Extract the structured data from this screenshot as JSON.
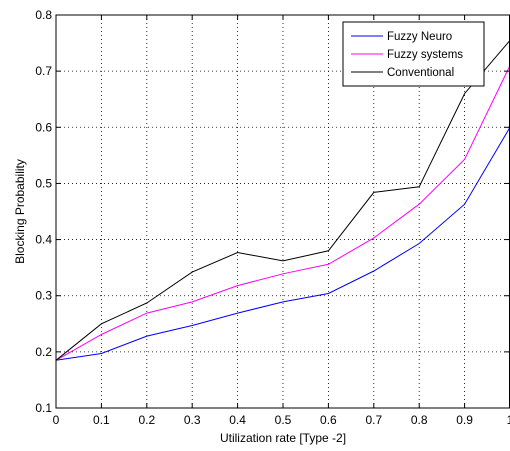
{
  "chart_data": {
    "type": "line",
    "xlabel": "Utilization rate [Type -2]",
    "ylabel": "Blocking Probability",
    "xlim": [
      0,
      1
    ],
    "ylim": [
      0.1,
      0.8
    ],
    "x_ticks": [
      "0",
      "0.1",
      "0.2",
      "0.3",
      "0.4",
      "0.5",
      "0.6",
      "0.7",
      "0.8",
      "0.9",
      "1"
    ],
    "y_ticks": [
      "0.1",
      "0.2",
      "0.3",
      "0.4",
      "0.5",
      "0.6",
      "0.7",
      "0.8"
    ],
    "grid": true,
    "legend_position": "top-right",
    "x": [
      0,
      0.1,
      0.2,
      0.3,
      0.4,
      0.5,
      0.6,
      0.7,
      0.8,
      0.9,
      1.0
    ],
    "series": [
      {
        "name": "Fuzzy Neuro",
        "color": "#0000ff",
        "values": [
          0.185,
          0.197,
          0.228,
          0.247,
          0.269,
          0.289,
          0.304,
          0.344,
          0.393,
          0.463,
          0.6
        ]
      },
      {
        "name": "Fuzzy systems",
        "color": "#ff00ff",
        "values": [
          0.185,
          0.231,
          0.269,
          0.289,
          0.318,
          0.339,
          0.356,
          0.403,
          0.463,
          0.543,
          0.71
        ]
      },
      {
        "name": "Conventional",
        "color": "#000000",
        "values": [
          0.185,
          0.25,
          0.287,
          0.342,
          0.377,
          0.362,
          0.38,
          0.484,
          0.494,
          0.66,
          0.755
        ]
      }
    ]
  }
}
